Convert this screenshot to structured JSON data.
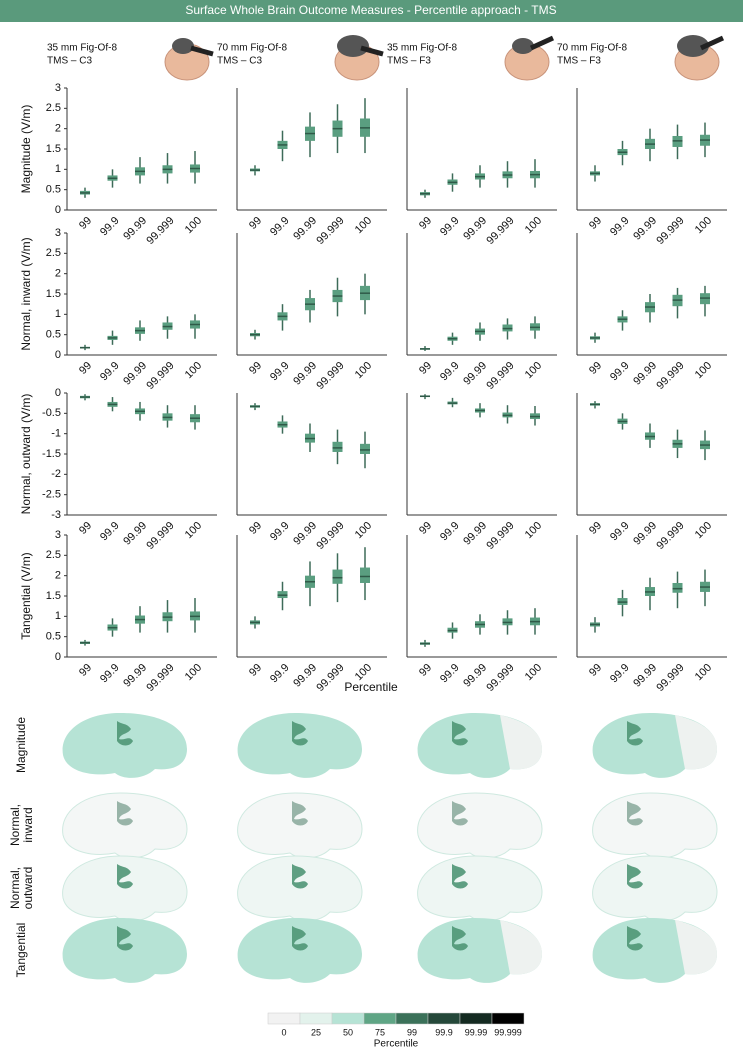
{
  "title": "Surface Whole Brain Outcome Measures - Percentile approach - TMS",
  "columns": [
    [
      "35 mm Fig-Of-8",
      "TMS – C3"
    ],
    [
      "70 mm Fig-Of-8",
      "TMS – C3"
    ],
    [
      "35 mm Fig-Of-8",
      "TMS – F3"
    ],
    [
      "70 mm Fig-Of-8",
      "TMS – F3"
    ]
  ],
  "x_label": "Percentile",
  "chart_data": [
    {
      "type": "box",
      "ylabel": "Magnitude (V/m)",
      "categories": [
        "99",
        "99.9",
        "99.99",
        "99.999",
        "100"
      ],
      "ylim": [
        0,
        3
      ],
      "yticks": [
        0,
        0.5,
        1,
        1.5,
        2,
        2.5,
        3
      ],
      "boxes": [
        [
          0.3,
          0.38,
          0.42,
          0.47,
          0.55
        ],
        [
          0.55,
          0.72,
          0.78,
          0.85,
          1.0
        ],
        [
          0.65,
          0.85,
          0.95,
          1.05,
          1.3
        ],
        [
          0.65,
          0.9,
          1.0,
          1.1,
          1.4
        ],
        [
          0.65,
          0.92,
          1.02,
          1.12,
          1.45
        ]
      ]
    },
    {
      "type": "box",
      "categories": [
        "99",
        "99.9",
        "99.99",
        "99.999",
        "100"
      ],
      "ylim": [
        0,
        3
      ],
      "boxes": [
        [
          0.85,
          0.95,
          0.98,
          1.02,
          1.1
        ],
        [
          1.2,
          1.5,
          1.6,
          1.7,
          1.95
        ],
        [
          1.3,
          1.7,
          1.88,
          2.05,
          2.4
        ],
        [
          1.4,
          1.8,
          2.0,
          2.2,
          2.6
        ],
        [
          1.4,
          1.8,
          2.02,
          2.25,
          2.75
        ]
      ]
    },
    {
      "type": "box",
      "categories": [
        "99",
        "99.9",
        "99.99",
        "99.999",
        "100"
      ],
      "ylim": [
        0,
        3
      ],
      "boxes": [
        [
          0.3,
          0.36,
          0.4,
          0.44,
          0.5
        ],
        [
          0.45,
          0.62,
          0.68,
          0.75,
          0.9
        ],
        [
          0.55,
          0.75,
          0.82,
          0.9,
          1.1
        ],
        [
          0.55,
          0.78,
          0.86,
          0.95,
          1.2
        ],
        [
          0.55,
          0.78,
          0.87,
          0.96,
          1.25
        ]
      ]
    },
    {
      "type": "box",
      "categories": [
        "99",
        "99.9",
        "99.99",
        "99.999",
        "100"
      ],
      "ylim": [
        0,
        3
      ],
      "boxes": [
        [
          0.7,
          0.85,
          0.9,
          0.95,
          1.1
        ],
        [
          1.1,
          1.35,
          1.42,
          1.5,
          1.7
        ],
        [
          1.2,
          1.5,
          1.62,
          1.75,
          2.0
        ],
        [
          1.25,
          1.55,
          1.7,
          1.82,
          2.1
        ],
        [
          1.3,
          1.58,
          1.72,
          1.85,
          2.15
        ]
      ]
    },
    {
      "type": "box",
      "ylabel": "Normal, inward (V/m)",
      "categories": [
        "99",
        "99.9",
        "99.99",
        "99.999",
        "100"
      ],
      "ylim": [
        0,
        3
      ],
      "yticks": [
        0,
        0.5,
        1,
        1.5,
        2,
        2.5,
        3
      ],
      "boxes": [
        [
          0.12,
          0.16,
          0.18,
          0.2,
          0.25
        ],
        [
          0.25,
          0.37,
          0.42,
          0.47,
          0.6
        ],
        [
          0.35,
          0.52,
          0.6,
          0.68,
          0.85
        ],
        [
          0.4,
          0.62,
          0.7,
          0.8,
          0.95
        ],
        [
          0.4,
          0.65,
          0.75,
          0.85,
          1.0
        ]
      ]
    },
    {
      "type": "box",
      "categories": [
        "99",
        "99.9",
        "99.99",
        "99.999",
        "100"
      ],
      "ylim": [
        0,
        3
      ],
      "boxes": [
        [
          0.38,
          0.46,
          0.5,
          0.54,
          0.62
        ],
        [
          0.6,
          0.85,
          0.95,
          1.05,
          1.25
        ],
        [
          0.8,
          1.1,
          1.25,
          1.4,
          1.6
        ],
        [
          0.95,
          1.3,
          1.45,
          1.6,
          1.9
        ],
        [
          1.0,
          1.35,
          1.52,
          1.7,
          2.0
        ]
      ]
    },
    {
      "type": "box",
      "categories": [
        "99",
        "99.9",
        "99.99",
        "99.999",
        "100"
      ],
      "ylim": [
        0,
        3
      ],
      "boxes": [
        [
          0.1,
          0.13,
          0.15,
          0.17,
          0.22
        ],
        [
          0.25,
          0.35,
          0.4,
          0.45,
          0.55
        ],
        [
          0.35,
          0.5,
          0.58,
          0.65,
          0.8
        ],
        [
          0.38,
          0.58,
          0.65,
          0.75,
          0.9
        ],
        [
          0.4,
          0.6,
          0.68,
          0.78,
          0.95
        ]
      ]
    },
    {
      "type": "box",
      "categories": [
        "99",
        "99.9",
        "99.99",
        "99.999",
        "100"
      ],
      "ylim": [
        0,
        3
      ],
      "boxes": [
        [
          0.3,
          0.38,
          0.42,
          0.46,
          0.55
        ],
        [
          0.6,
          0.8,
          0.88,
          0.95,
          1.1
        ],
        [
          0.8,
          1.05,
          1.18,
          1.3,
          1.5
        ],
        [
          0.9,
          1.2,
          1.35,
          1.48,
          1.65
        ],
        [
          0.95,
          1.25,
          1.4,
          1.52,
          1.7
        ]
      ]
    },
    {
      "type": "box",
      "ylabel": "Normal, outward (V/m)",
      "categories": [
        "99",
        "99.9",
        "99.99",
        "99.999",
        "100"
      ],
      "ylim": [
        -3,
        0
      ],
      "yticks": [
        0,
        -0.5,
        -1,
        -1.5,
        -2,
        -2.5,
        -3
      ],
      "boxes": [
        [
          -0.18,
          -0.13,
          -0.1,
          -0.07,
          -0.03
        ],
        [
          -0.45,
          -0.34,
          -0.28,
          -0.22,
          -0.1
        ],
        [
          -0.68,
          -0.52,
          -0.45,
          -0.38,
          -0.22
        ],
        [
          -0.85,
          -0.68,
          -0.6,
          -0.5,
          -0.3
        ],
        [
          -0.9,
          -0.72,
          -0.62,
          -0.52,
          -0.3
        ]
      ]
    },
    {
      "type": "box",
      "categories": [
        "99",
        "99.9",
        "99.99",
        "99.999",
        "100"
      ],
      "ylim": [
        -3,
        0
      ],
      "boxes": [
        [
          -0.42,
          -0.36,
          -0.33,
          -0.3,
          -0.25
        ],
        [
          -1.0,
          -0.85,
          -0.78,
          -0.7,
          -0.55
        ],
        [
          -1.45,
          -1.22,
          -1.12,
          -1.0,
          -0.75
        ],
        [
          -1.75,
          -1.45,
          -1.35,
          -1.2,
          -0.9
        ],
        [
          -1.85,
          -1.5,
          -1.4,
          -1.25,
          -0.95
        ]
      ]
    },
    {
      "type": "box",
      "categories": [
        "99",
        "99.9",
        "99.99",
        "99.999",
        "100"
      ],
      "ylim": [
        -3,
        0
      ],
      "boxes": [
        [
          -0.15,
          -0.1,
          -0.08,
          -0.06,
          -0.03
        ],
        [
          -0.35,
          -0.28,
          -0.25,
          -0.21,
          -0.12
        ],
        [
          -0.6,
          -0.48,
          -0.43,
          -0.38,
          -0.25
        ],
        [
          -0.75,
          -0.6,
          -0.55,
          -0.48,
          -0.3
        ],
        [
          -0.8,
          -0.64,
          -0.58,
          -0.5,
          -0.32
        ]
      ]
    },
    {
      "type": "box",
      "categories": [
        "99",
        "99.9",
        "99.99",
        "99.999",
        "100"
      ],
      "ylim": [
        -3,
        0
      ],
      "boxes": [
        [
          -0.38,
          -0.31,
          -0.28,
          -0.25,
          -0.2
        ],
        [
          -0.9,
          -0.76,
          -0.7,
          -0.63,
          -0.5
        ],
        [
          -1.35,
          -1.15,
          -1.07,
          -0.97,
          -0.75
        ],
        [
          -1.6,
          -1.35,
          -1.25,
          -1.15,
          -0.9
        ],
        [
          -1.65,
          -1.38,
          -1.28,
          -1.17,
          -0.92
        ]
      ]
    },
    {
      "type": "box",
      "ylabel": "Tangential (V/m)",
      "categories": [
        "99",
        "99.9",
        "99.99",
        "99.999",
        "100"
      ],
      "ylim": [
        0,
        3
      ],
      "yticks": [
        0,
        0.5,
        1,
        1.5,
        2,
        2.5,
        3
      ],
      "boxes": [
        [
          0.28,
          0.32,
          0.35,
          0.38,
          0.42
        ],
        [
          0.5,
          0.65,
          0.72,
          0.8,
          0.95
        ],
        [
          0.6,
          0.82,
          0.92,
          1.02,
          1.25
        ],
        [
          0.6,
          0.88,
          0.98,
          1.1,
          1.4
        ],
        [
          0.6,
          0.9,
          1.0,
          1.12,
          1.45
        ]
      ]
    },
    {
      "type": "box",
      "categories": [
        "99",
        "99.9",
        "99.99",
        "99.999",
        "100"
      ],
      "ylim": [
        0,
        3
      ],
      "boxes": [
        [
          0.7,
          0.8,
          0.85,
          0.9,
          1.0
        ],
        [
          1.15,
          1.45,
          1.52,
          1.62,
          1.85
        ],
        [
          1.25,
          1.7,
          1.85,
          2.0,
          2.35
        ],
        [
          1.35,
          1.8,
          1.95,
          2.15,
          2.55
        ],
        [
          1.4,
          1.82,
          1.98,
          2.2,
          2.7
        ]
      ]
    },
    {
      "type": "box",
      "categories": [
        "99",
        "99.9",
        "99.99",
        "99.999",
        "100"
      ],
      "ylim": [
        0,
        3
      ],
      "boxes": [
        [
          0.25,
          0.3,
          0.33,
          0.36,
          0.42
        ],
        [
          0.45,
          0.6,
          0.65,
          0.72,
          0.85
        ],
        [
          0.55,
          0.72,
          0.8,
          0.88,
          1.05
        ],
        [
          0.55,
          0.78,
          0.85,
          0.95,
          1.15
        ],
        [
          0.55,
          0.78,
          0.87,
          0.97,
          1.2
        ]
      ]
    },
    {
      "type": "box",
      "categories": [
        "99",
        "99.9",
        "99.99",
        "99.999",
        "100"
      ],
      "ylim": [
        0,
        3
      ],
      "boxes": [
        [
          0.6,
          0.75,
          0.8,
          0.85,
          0.98
        ],
        [
          1.0,
          1.28,
          1.35,
          1.45,
          1.65
        ],
        [
          1.15,
          1.5,
          1.6,
          1.72,
          1.95
        ],
        [
          1.2,
          1.58,
          1.68,
          1.82,
          2.1
        ],
        [
          1.25,
          1.6,
          1.72,
          1.85,
          2.15
        ]
      ]
    }
  ],
  "brain_rows": [
    [
      "Magnitude"
    ],
    [
      "Normal,",
      "inward"
    ],
    [
      "Normal,",
      "outward"
    ],
    [
      "Tangential"
    ]
  ],
  "colorbar": {
    "title": "Percentile",
    "labels": [
      "0",
      "25",
      "50",
      "75",
      "99",
      "99.9",
      "99.99",
      "99.999"
    ],
    "colors": [
      "#f2f2f2",
      "#e3f2ec",
      "#b6e3d5",
      "#5fa585",
      "#3b7159",
      "#25483a",
      "#142a21",
      "#000000"
    ]
  }
}
